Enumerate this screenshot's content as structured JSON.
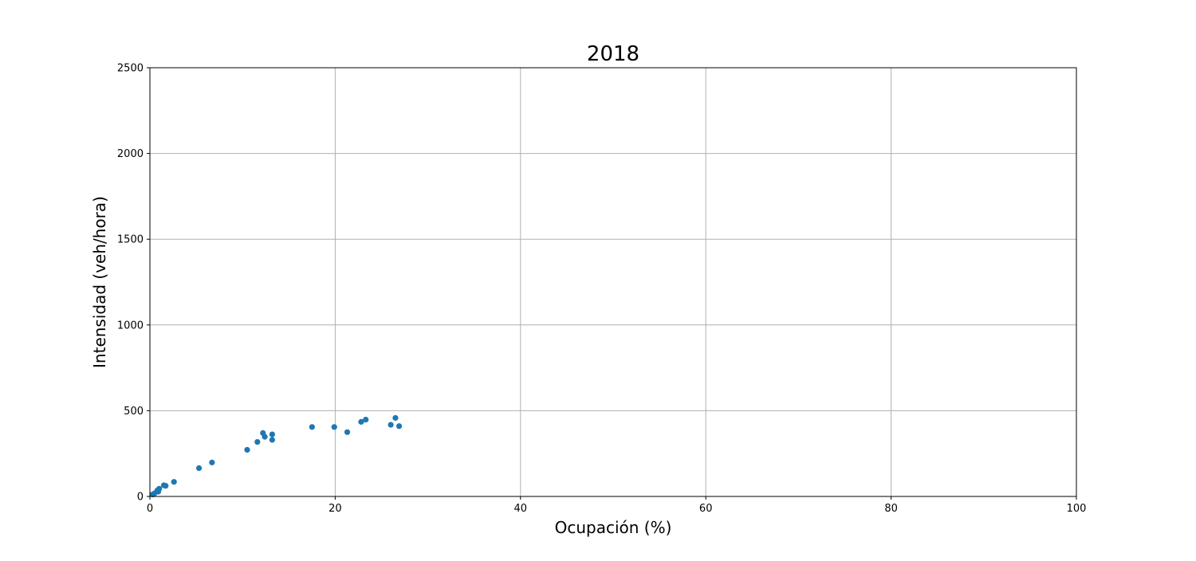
{
  "chart_data": {
    "type": "scatter",
    "title": "2018",
    "xlabel": "Ocupación (%)",
    "ylabel": "Intensidad (veh/hora)",
    "xlim": [
      0,
      100
    ],
    "ylim": [
      0,
      2500
    ],
    "xticks": [
      0,
      20,
      40,
      60,
      80,
      100
    ],
    "yticks": [
      0,
      500,
      1000,
      1500,
      2000,
      2500
    ],
    "xtick_labels": [
      "0",
      "20",
      "40",
      "60",
      "80",
      "100"
    ],
    "ytick_labels": [
      "0",
      "500",
      "1000",
      "1500",
      "2000",
      "2500"
    ],
    "grid": true,
    "legend": "none",
    "series": [
      {
        "color": "#1f77b4",
        "points": [
          {
            "x": 0.3,
            "y": 12
          },
          {
            "x": 0.5,
            "y": 18
          },
          {
            "x": 0.8,
            "y": 35
          },
          {
            "x": 0.9,
            "y": 28
          },
          {
            "x": 1.0,
            "y": 45
          },
          {
            "x": 1.5,
            "y": 65
          },
          {
            "x": 1.7,
            "y": 62
          },
          {
            "x": 2.6,
            "y": 85
          },
          {
            "x": 5.3,
            "y": 165
          },
          {
            "x": 6.7,
            "y": 198
          },
          {
            "x": 10.5,
            "y": 272
          },
          {
            "x": 11.6,
            "y": 318
          },
          {
            "x": 12.2,
            "y": 370
          },
          {
            "x": 12.4,
            "y": 348
          },
          {
            "x": 13.2,
            "y": 362
          },
          {
            "x": 13.2,
            "y": 330
          },
          {
            "x": 17.5,
            "y": 405
          },
          {
            "x": 19.9,
            "y": 405
          },
          {
            "x": 21.3,
            "y": 375
          },
          {
            "x": 22.8,
            "y": 435
          },
          {
            "x": 23.3,
            "y": 448
          },
          {
            "x": 26.0,
            "y": 418
          },
          {
            "x": 26.5,
            "y": 458
          },
          {
            "x": 26.9,
            "y": 410
          }
        ]
      }
    ]
  }
}
